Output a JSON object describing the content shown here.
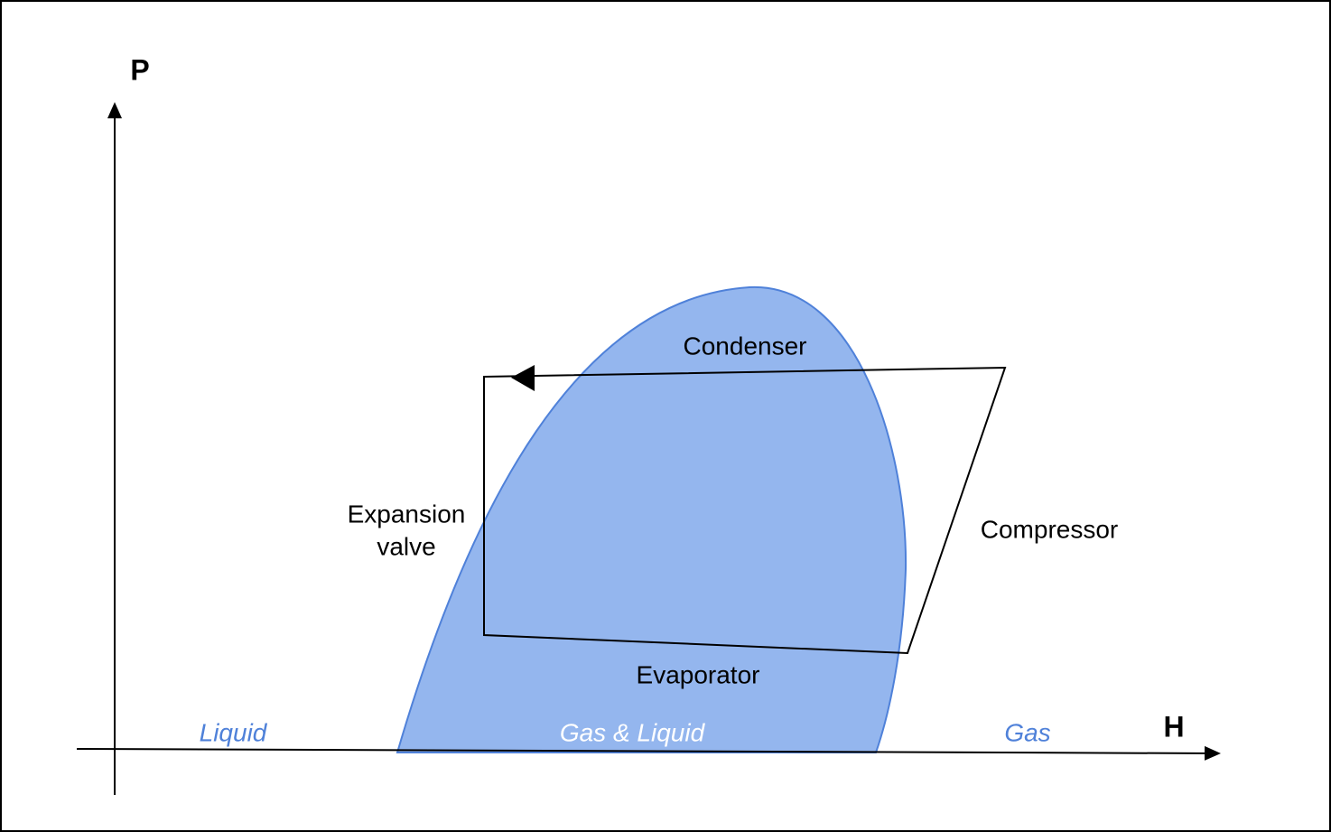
{
  "axes": {
    "y_label": "P",
    "x_label": "H"
  },
  "regions": {
    "left": "Liquid",
    "middle": "Gas & Liquid",
    "right": "Gas"
  },
  "stages": {
    "top": "Condenser",
    "right": "Compressor",
    "bottom": "Evaporator",
    "left_line1": "Expansion",
    "left_line2": "valve"
  }
}
